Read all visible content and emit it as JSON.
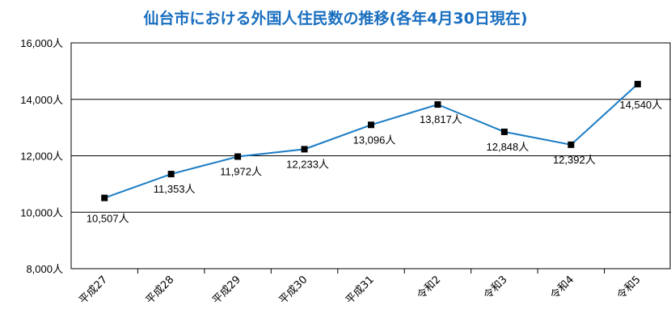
{
  "chart_data": {
    "type": "line",
    "title": "仙台市における外国人住民数の推移(各年4月30日現在)",
    "unit_suffix": "人",
    "categories": [
      "平成27",
      "平成28",
      "平成29",
      "平成30",
      "平成31",
      "令和2",
      "令和3",
      "令和4",
      "令和5"
    ],
    "series": [
      {
        "values": [
          10507,
          11353,
          11972,
          12233,
          13096,
          13817,
          12848,
          12392,
          14540
        ],
        "labels": [
          "10,507人",
          "11,353人",
          "11,972人",
          "12,233人",
          "13,096人",
          "13,817人",
          "12,848人",
          "12,392人",
          "14,540人"
        ]
      }
    ],
    "ylim": [
      8000,
      16000
    ],
    "yticks": [
      8000,
      10000,
      12000,
      14000,
      16000
    ],
    "ytick_labels": [
      "8,000人",
      "10,000人",
      "12,000人",
      "14,000人",
      "16,000人"
    ],
    "grid": true,
    "line_color": "#1a7cc4",
    "marker_color": "#000000"
  }
}
